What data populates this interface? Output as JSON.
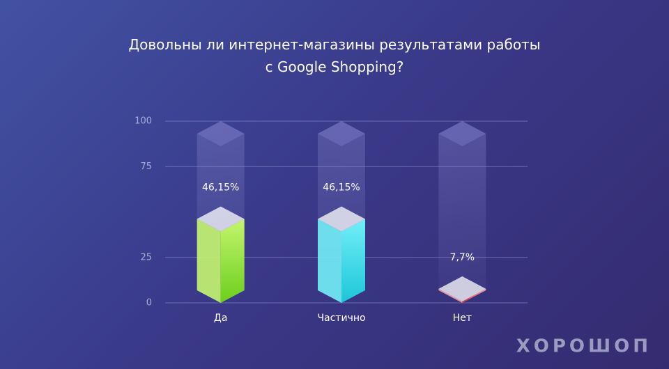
{
  "chart_data": {
    "type": "bar3d",
    "title": "Довольны ли интернет-магазины результатами работы с Google Shopping?",
    "categories": [
      "Да",
      "Частично",
      "Нет"
    ],
    "values": [
      46.15,
      46.15,
      7.7
    ],
    "value_labels": [
      "46,15%",
      "46,15%",
      "7,7%"
    ],
    "colors": [
      [
        "#c4f56e",
        "#6ccf1c"
      ],
      [
        "#72eef7",
        "#1cc6d8"
      ],
      [
        "#f7a0a0",
        "#d83232"
      ]
    ],
    "ylim": [
      0,
      100
    ],
    "yticks": [
      0,
      25,
      75,
      100
    ],
    "grid": true
  },
  "brand": "ХОРОШОП"
}
